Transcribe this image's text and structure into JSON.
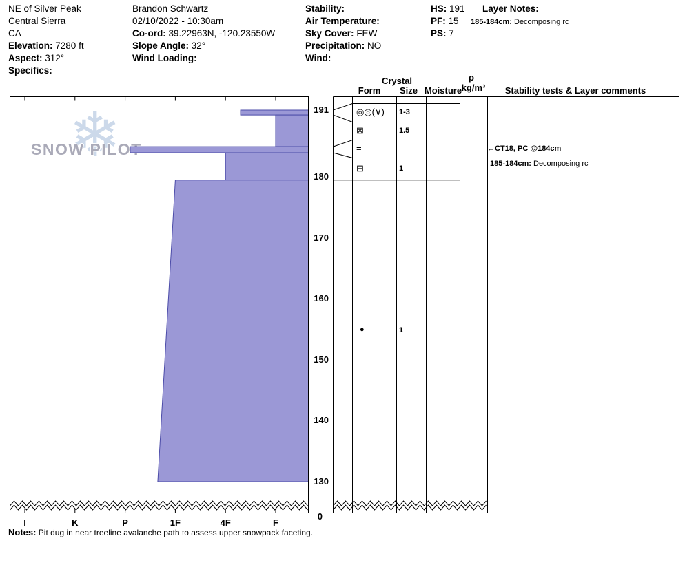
{
  "title": "SnowPilot snow pit profile",
  "colors": {
    "profile_fill": "#9b98d6",
    "profile_stroke": "#4b4ba8",
    "watermark_flake": "#ccd9ea",
    "watermark_text": "#aaaab8",
    "line": "#000000"
  },
  "header": {
    "site": {
      "name": "NE of Silver Peak",
      "region": "Central Sierra",
      "state": "CA",
      "elevation_label": "Elevation:",
      "elevation_value": "7280 ft",
      "aspect_label": "Aspect:",
      "aspect_value": "312°",
      "specifics_label": "Specifics:",
      "specifics_value": ""
    },
    "observer": {
      "name": "Brandon Schwartz",
      "datetime": "02/10/2022 - 10:30am",
      "coord_label": "Co-ord:",
      "coord_value": "39.22963N, -120.23550W",
      "slope_angle_label": "Slope Angle:",
      "slope_angle_value": "32°",
      "wind_loading_label": "Wind Loading:",
      "wind_loading_value": ""
    },
    "weather": {
      "stability_label": "Stability:",
      "stability_value": "",
      "air_temp_label": "Air Temperature:",
      "air_temp_value": "",
      "sky_cover_label": "Sky Cover:",
      "sky_cover_value": "FEW",
      "precip_label": "Precipitation:",
      "precip_value": "NO",
      "wind_label": "Wind:",
      "wind_value": ""
    },
    "metrics": {
      "hs_label": "HS:",
      "hs_value": "191",
      "pf_label": "PF:",
      "pf_value": "15",
      "ps_label": "PS:",
      "ps_value": "7"
    },
    "layer_notes": {
      "title": "Layer Notes:",
      "note_depth": "185-184cm:",
      "note_text": "Decomposing rc"
    }
  },
  "watermark": {
    "text": "SNOW PILOT",
    "flake_glyph": "❄"
  },
  "table_headers": {
    "crystal": "Crystal",
    "form": "Form",
    "size": "Size",
    "moisture": "Moisture",
    "density_symbol": "ρ",
    "density_units": "kg/m³",
    "comments": "Stability tests & Layer comments"
  },
  "annotations": {
    "stability_test": {
      "arrow": "←",
      "text": "CT18, PC @184cm",
      "depth_cm": 184
    },
    "layer_comment": {
      "depth_label": "185-184cm:",
      "text": "Decomposing rc"
    }
  },
  "footer_notes": {
    "label": "Notes:",
    "text": "Pit dug in near treeline avalanche path to assess upper snowpack faceting."
  },
  "chart_data": {
    "type": "snow-profile hand-hardness bar chart with grain table",
    "surface_depth_cm": 191,
    "pit_bottom_cm": 130,
    "depth_axis_break_to": 0,
    "break_label": "0",
    "depth_ticks": [
      191,
      180,
      170,
      160,
      150,
      140,
      130
    ],
    "hardness_ticks": [
      {
        "label": "I",
        "h": 6
      },
      {
        "label": "K",
        "h": 5
      },
      {
        "label": "P",
        "h": 4
      },
      {
        "label": "1F",
        "h": 3
      },
      {
        "label": "4F",
        "h": 2
      },
      {
        "label": "F",
        "h": 1
      }
    ],
    "layers": [
      {
        "top_cm": 191,
        "bottom_cm": 190.2,
        "hardness": "4F+",
        "h_top": 1.7,
        "h_bottom": 1.7
      },
      {
        "top_cm": 190.2,
        "bottom_cm": 185,
        "hardness": "F",
        "h_top": 1.0,
        "h_bottom": 1.0
      },
      {
        "top_cm": 185,
        "bottom_cm": 184,
        "hardness": "P",
        "h_top": 3.9,
        "h_bottom": 3.9
      },
      {
        "top_cm": 184,
        "bottom_cm": 179.5,
        "hardness": "4F",
        "h_top": 2.0,
        "h_bottom": 2.0
      },
      {
        "top_cm": 179.5,
        "bottom_cm": 130,
        "hardness": "1F",
        "h_top": 3.0,
        "h_bottom": 3.35
      }
    ],
    "grain_rows": [
      {
        "top_cm": 191,
        "bottom_cm": 190.2,
        "form": "◎◎(∨)",
        "size_mm": "1-3"
      },
      {
        "top_cm": 190.2,
        "bottom_cm": 185,
        "form": "⊠",
        "size_mm": "1.5"
      },
      {
        "top_cm": 185,
        "bottom_cm": 184,
        "form": "=",
        "size_mm": ""
      },
      {
        "top_cm": 184,
        "bottom_cm": 179.5,
        "form": "⊟",
        "size_mm": "1"
      },
      {
        "top_cm": 179.5,
        "bottom_cm": 130,
        "form": "●",
        "size_mm": "1",
        "placement": "layer-center"
      }
    ]
  }
}
